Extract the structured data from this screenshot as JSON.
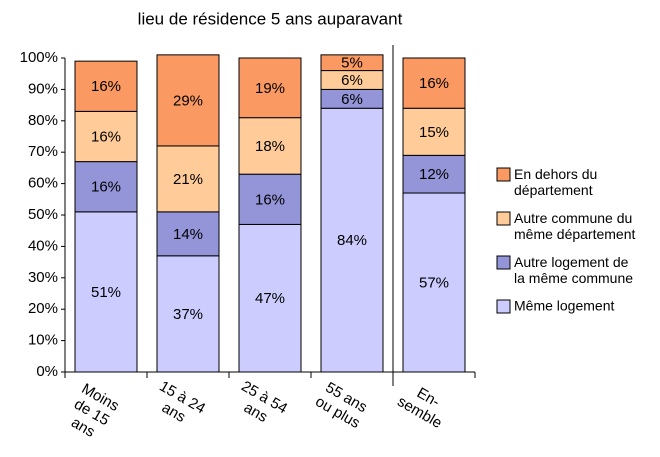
{
  "chart_data": {
    "type": "stacked_bar",
    "title": "lieu de résidence 5 ans auparavant",
    "categories": [
      "Moins\nde 15\nans",
      "15 à 24\nans",
      "25 à 54\nans",
      "55 ans\nou plus",
      "En-\nsemble"
    ],
    "series": [
      {
        "name": "Même logement",
        "color": "#ccccff",
        "values": [
          51,
          37,
          47,
          84,
          57
        ],
        "value_labels": [
          "51%",
          "37%",
          "47%",
          "84%",
          "57%"
        ]
      },
      {
        "name": "Autre logement de\nla même commune",
        "color": "#9494d8",
        "values": [
          16,
          14,
          16,
          6,
          12
        ],
        "value_labels": [
          "16%",
          "14%",
          "16%",
          "6%",
          "12%"
        ]
      },
      {
        "name": "Autre commune du\nmême département",
        "color": "#ffcc99",
        "values": [
          16,
          21,
          18,
          6,
          15
        ],
        "value_labels": [
          "16%",
          "21%",
          "18%",
          "6%",
          "15%"
        ]
      },
      {
        "name": "En dehors du\ndépartement",
        "color": "#fa9a62",
        "values": [
          16,
          29,
          19,
          5,
          16
        ],
        "value_labels": [
          "16%",
          "29%",
          "19%",
          "5%",
          "16%"
        ]
      }
    ],
    "ylim": [
      0,
      100
    ],
    "yticks": [
      {
        "value": 0,
        "label": "0%"
      },
      {
        "value": 10,
        "label": "10%"
      },
      {
        "value": 20,
        "label": "20%"
      },
      {
        "value": 30,
        "label": "30%"
      },
      {
        "value": 40,
        "label": "40%"
      },
      {
        "value": 50,
        "label": "50%"
      },
      {
        "value": 60,
        "label": "60%"
      },
      {
        "value": 70,
        "label": "70%"
      },
      {
        "value": 80,
        "label": "80%"
      },
      {
        "value": 90,
        "label": "90%"
      },
      {
        "value": 100,
        "label": "100%"
      }
    ],
    "grid": false
  }
}
